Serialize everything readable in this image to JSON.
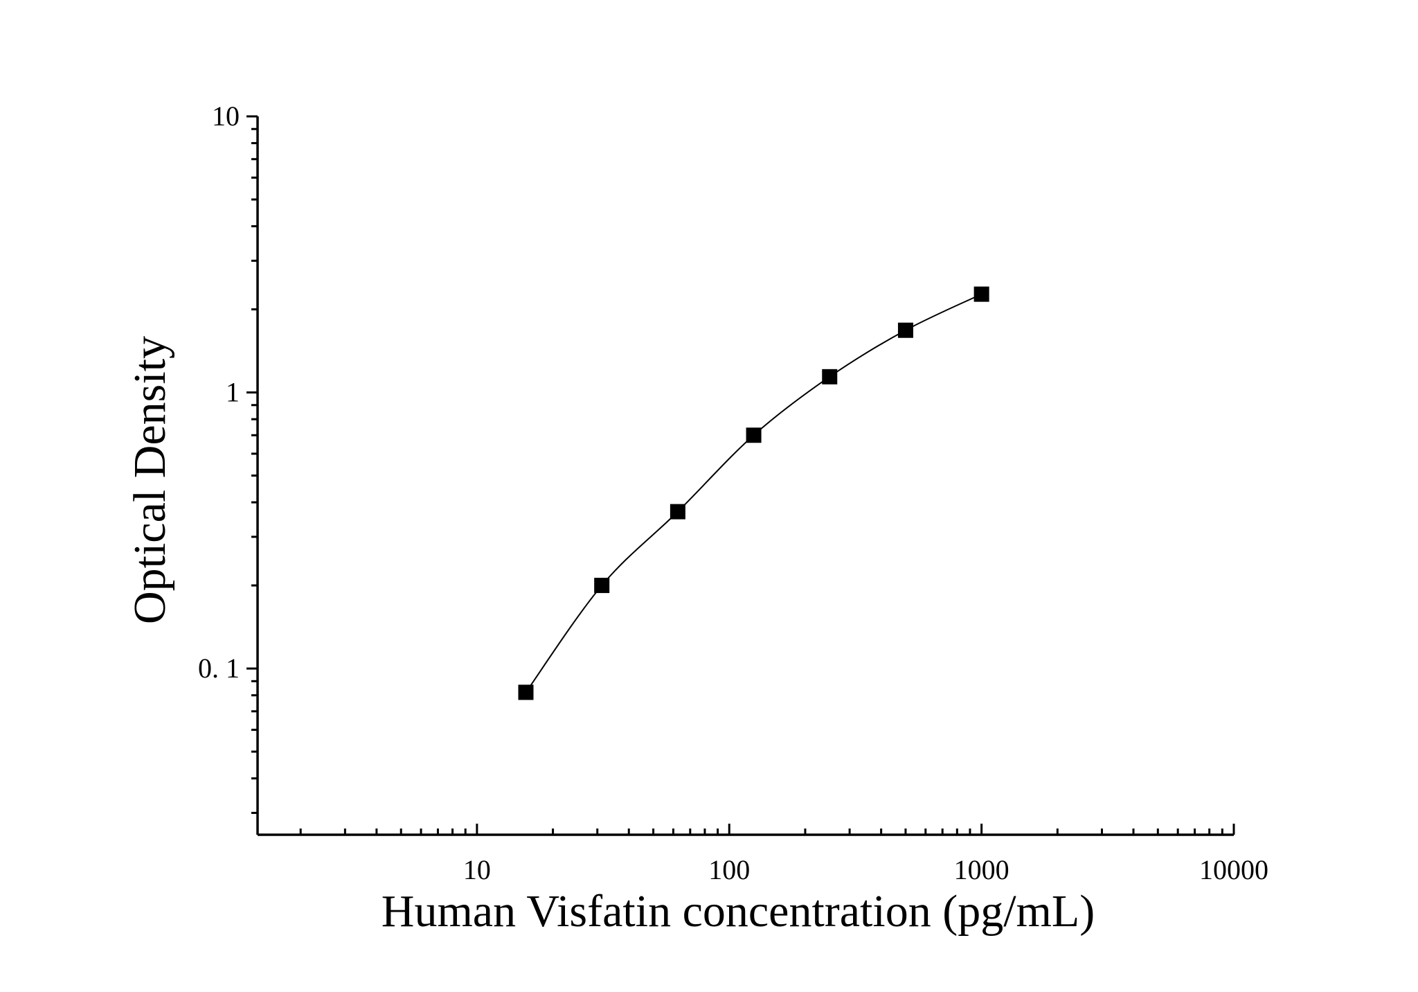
{
  "chart_data": {
    "type": "scatter",
    "title": "",
    "xlabel": "Human Visfatin concentration (pg/mL)",
    "ylabel": "Optical Density",
    "x_scale": "log",
    "y_scale": "log",
    "xlim": [
      1.35,
      10000
    ],
    "ylim": [
      0.025,
      10
    ],
    "x_tick_labels": [
      {
        "value": 10,
        "label": "10"
      },
      {
        "value": 100,
        "label": "100"
      },
      {
        "value": 1000,
        "label": "1000"
      },
      {
        "value": 10000,
        "label": "10000"
      }
    ],
    "y_tick_labels": [
      {
        "value": 0.1,
        "label": "0. 1"
      },
      {
        "value": 1,
        "label": "1"
      },
      {
        "value": 10,
        "label": "10"
      }
    ],
    "grid": false,
    "legend": "none",
    "marker": "filled-square",
    "color": "#000000",
    "series": [
      {
        "x": [
          15.625,
          31.25,
          62.5,
          125,
          250,
          500,
          1000
        ],
        "y": [
          0.082,
          0.2,
          0.37,
          0.7,
          1.14,
          1.68,
          2.27
        ]
      }
    ],
    "fit_curve": "smooth curve through points"
  }
}
